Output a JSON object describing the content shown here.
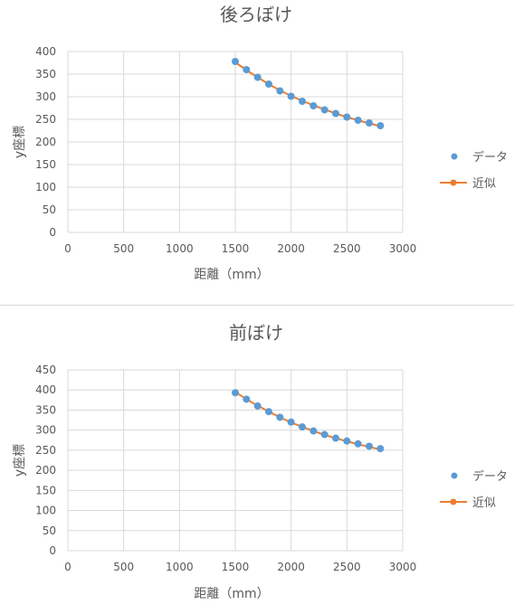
{
  "chart_data": [
    {
      "type": "scatter",
      "title": "後ろぼけ",
      "xlabel": "距離（mm）",
      "ylabel": "y座標",
      "xlim": [
        0,
        3000
      ],
      "ylim": [
        0,
        400
      ],
      "xticks": [
        0,
        500,
        1000,
        1500,
        2000,
        2500,
        3000
      ],
      "yticks": [
        0,
        50,
        100,
        150,
        200,
        250,
        300,
        350,
        400
      ],
      "grid": true,
      "legend_position": "right",
      "series": [
        {
          "name": "データ",
          "kind": "scatter",
          "color": "#5b9bd5",
          "x": [
            1500,
            1600,
            1700,
            1800,
            1900,
            2000,
            2100,
            2200,
            2300,
            2400,
            2500,
            2600,
            2700,
            2800
          ],
          "y": [
            378,
            360,
            343,
            328,
            313,
            301,
            290,
            280,
            271,
            263,
            255,
            248,
            242,
            236
          ]
        },
        {
          "name": "近似",
          "kind": "line",
          "color": "#ed7d31",
          "x": [
            1500,
            1600,
            1700,
            1800,
            1900,
            2000,
            2100,
            2200,
            2300,
            2400,
            2500,
            2600,
            2700,
            2800
          ],
          "y": [
            376,
            359,
            343,
            328,
            314,
            302,
            291,
            281,
            272,
            263,
            255,
            248,
            241,
            235
          ]
        }
      ]
    },
    {
      "type": "scatter",
      "title": "前ぼけ",
      "xlabel": "距離（mm）",
      "ylabel": "y座標",
      "xlim": [
        0,
        3000
      ],
      "ylim": [
        0,
        450
      ],
      "xticks": [
        0,
        500,
        1000,
        1500,
        2000,
        2500,
        3000
      ],
      "yticks": [
        0,
        50,
        100,
        150,
        200,
        250,
        300,
        350,
        400,
        450
      ],
      "grid": true,
      "legend_position": "right",
      "series": [
        {
          "name": "データ",
          "kind": "scatter",
          "color": "#5b9bd5",
          "x": [
            1500,
            1600,
            1700,
            1800,
            1900,
            2000,
            2100,
            2200,
            2300,
            2400,
            2500,
            2600,
            2700,
            2800
          ],
          "y": [
            393,
            377,
            360,
            346,
            332,
            320,
            308,
            298,
            289,
            280,
            273,
            266,
            260,
            254
          ]
        },
        {
          "name": "近似",
          "kind": "line",
          "color": "#ed7d31",
          "x": [
            1500,
            1600,
            1700,
            1800,
            1900,
            2000,
            2100,
            2200,
            2300,
            2400,
            2500,
            2600,
            2700,
            2800
          ],
          "y": [
            395,
            377,
            361,
            346,
            332,
            319,
            308,
            298,
            288,
            280,
            272,
            265,
            258,
            252
          ]
        }
      ]
    }
  ]
}
